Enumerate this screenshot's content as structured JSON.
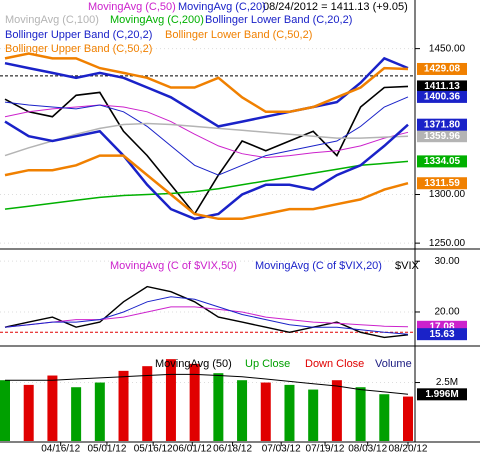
{
  "chart_data": [
    {
      "type": "line",
      "title": "08/24/2012 = 1411.13 (+9.05)",
      "x": [
        0,
        2,
        4,
        6,
        8,
        10,
        12,
        14,
        16,
        18,
        20,
        22,
        24,
        26,
        28,
        30,
        32,
        34
      ],
      "xlim": [
        0,
        34
      ],
      "ylim": [
        1245,
        1500
      ],
      "yticks": [
        {
          "value": 1250,
          "label": "1250.00"
        },
        {
          "value": 1300,
          "label": "1300.00"
        },
        {
          "value": 1450,
          "label": "1450.00"
        }
      ],
      "hline": {
        "value": 1422,
        "color": "#000000"
      },
      "series": [
        {
          "color": "#000000",
          "width": 1.6,
          "last_label": "1411.13",
          "values": [
            1398,
            1385,
            1380,
            1402,
            1405,
            1365,
            1340,
            1310,
            1280,
            1320,
            1355,
            1345,
            1355,
            1365,
            1340,
            1390,
            1410,
            1411.13
          ]
        },
        {
          "name": "MovingAvg (C,50)",
          "color": "#cc22cc",
          "width": 1,
          "values": [
            1380,
            1385,
            1388,
            1390,
            1392,
            1390,
            1385,
            1375,
            1362,
            1350,
            1342,
            1338,
            1340,
            1343,
            1345,
            1350,
            1358,
            1364
          ]
        },
        {
          "name": "MovingAvg (C,20)",
          "color": "#1a22c8",
          "width": 1,
          "last_label": "1400.36",
          "values": [
            1395,
            1392,
            1390,
            1388,
            1392,
            1385,
            1370,
            1350,
            1330,
            1320,
            1330,
            1340,
            1345,
            1350,
            1355,
            1370,
            1390,
            1400.36
          ]
        },
        {
          "name": "MovingAvg (C,100)",
          "color": "#b4b4b4",
          "width": 1.5,
          "last_label": "1359.96",
          "values": [
            1340,
            1348,
            1355,
            1362,
            1368,
            1372,
            1373,
            1372,
            1370,
            1368,
            1366,
            1364,
            1362,
            1360,
            1358,
            1358,
            1359,
            1359.96
          ]
        },
        {
          "name": "MovingAvg (C,200)",
          "color": "#00b000",
          "width": 1.5,
          "last_label": "1334.05",
          "values": [
            1285,
            1288,
            1291,
            1294,
            1297,
            1299,
            1300,
            1301,
            1303,
            1306,
            1310,
            1314,
            1318,
            1322,
            1326,
            1330,
            1332,
            1334.05
          ]
        },
        {
          "name": "Bollinger Lower Band (C,20,2)",
          "color": "#1a22c8",
          "width": 2.5,
          "last_label": "1371.80",
          "values": [
            1375,
            1360,
            1355,
            1360,
            1365,
            1340,
            1310,
            1285,
            1275,
            1280,
            1300,
            1310,
            1310,
            1305,
            1320,
            1330,
            1350,
            1371.8
          ]
        },
        {
          "name": "Bollinger Upper Band (C,20,2)",
          "color": "#1a22c8",
          "width": 2.5,
          "values": [
            1435,
            1430,
            1425,
            1420,
            1425,
            1420,
            1410,
            1400,
            1385,
            1370,
            1375,
            1380,
            1385,
            1390,
            1395,
            1415,
            1440,
            1430
          ]
        },
        {
          "name": "Bollinger Lower Band (C,50,2)",
          "color": "#f08000",
          "width": 2.5,
          "last_label": "1311.59",
          "values": [
            1320,
            1325,
            1325,
            1330,
            1340,
            1340,
            1320,
            1300,
            1280,
            1275,
            1275,
            1280,
            1285,
            1285,
            1290,
            1295,
            1305,
            1311.59
          ]
        },
        {
          "name": "Bollinger Upper Band (C,50,2)",
          "color": "#f08000",
          "width": 2.5,
          "last_label": "1429.08",
          "values": [
            1440,
            1445,
            1440,
            1440,
            1430,
            1425,
            1420,
            1410,
            1410,
            1420,
            1400,
            1385,
            1385,
            1390,
            1400,
            1410,
            1430,
            1429.08
          ]
        }
      ]
    },
    {
      "type": "line",
      "x": [
        0,
        2,
        4,
        6,
        8,
        10,
        12,
        14,
        16,
        18,
        20,
        22,
        24,
        26,
        28,
        30,
        32,
        34
      ],
      "xlim": [
        0,
        34
      ],
      "ylim": [
        13.5,
        32.2
      ],
      "yticks": [
        {
          "value": 20,
          "label": "20.00"
        },
        {
          "value": 30,
          "label": "30.00"
        }
      ],
      "hline": {
        "value": 16,
        "color": "#e00000"
      },
      "series": [
        {
          "name": "$VIX",
          "color": "#000000",
          "width": 1.4,
          "values": [
            17,
            18,
            19,
            17,
            18,
            22,
            25,
            24,
            22,
            19,
            18,
            17,
            16,
            17,
            18,
            16,
            15,
            15.5
          ]
        },
        {
          "name": "MovingAvg (C of $VIX,50)",
          "color": "#cc22cc",
          "width": 1,
          "last_label": "17.08",
          "values": [
            17,
            17.5,
            18,
            18.5,
            18.5,
            19,
            20,
            21,
            21,
            20.5,
            20,
            19,
            18.5,
            18,
            17.8,
            17.5,
            17.2,
            17.08
          ]
        },
        {
          "name": "MovingAvg (C of $VIX,20)",
          "color": "#1a22c8",
          "width": 1,
          "last_label": "15.63",
          "values": [
            17,
            17.5,
            18,
            18,
            18.5,
            20,
            22,
            23,
            22.5,
            21,
            19.5,
            18.5,
            17.5,
            17,
            17,
            16.5,
            16,
            15.63
          ]
        }
      ]
    },
    {
      "type": "bar",
      "x": [
        0,
        2,
        4,
        6,
        8,
        10,
        12,
        14,
        16,
        18,
        20,
        22,
        24,
        26,
        28,
        30,
        32,
        34
      ],
      "xlim": [
        0,
        34
      ],
      "ylim": [
        0,
        4.02
      ],
      "yticks": [
        {
          "value": 2.5,
          "label": "2.5M"
        }
      ],
      "xticks": [
        {
          "value": 4.7,
          "label": "04/16/12"
        },
        {
          "value": 8.6,
          "label": "05/01/12"
        },
        {
          "value": 12.5,
          "label": "05/16/12"
        },
        {
          "value": 15.8,
          "label": "06/01/12"
        },
        {
          "value": 19.2,
          "label": "06/18/12"
        },
        {
          "value": 23.3,
          "label": "07/03/12"
        },
        {
          "value": 27,
          "label": "07/19/12"
        },
        {
          "value": 30.6,
          "label": "08/03/12"
        },
        {
          "value": 34,
          "label": "08/20/12"
        }
      ],
      "up_color": {
        "name": "Up Close",
        "color": "#00a000"
      },
      "down_color": {
        "name": "Down Close",
        "color": "#e00000"
      },
      "series": [
        {
          "name": "Volume",
          "color": "#1a1a80",
          "kind": "bar",
          "up": [
            true,
            false,
            false,
            true,
            true,
            false,
            false,
            false,
            false,
            true,
            true,
            false,
            true,
            true,
            false,
            true,
            true,
            false
          ],
          "values": [
            2.6,
            2.4,
            2.8,
            2.3,
            2.5,
            3.0,
            3.2,
            3.5,
            3.3,
            2.9,
            2.6,
            2.5,
            2.4,
            2.2,
            2.6,
            2.3,
            2.0,
            1.9
          ]
        },
        {
          "name": "MovingAvg (50)",
          "color": "#000000",
          "width": 1,
          "last_label": "1.996M",
          "values": [
            2.6,
            2.6,
            2.6,
            2.65,
            2.7,
            2.75,
            2.8,
            2.85,
            2.85,
            2.8,
            2.75,
            2.65,
            2.55,
            2.45,
            2.35,
            2.2,
            2.1,
            1.996
          ]
        }
      ]
    }
  ]
}
